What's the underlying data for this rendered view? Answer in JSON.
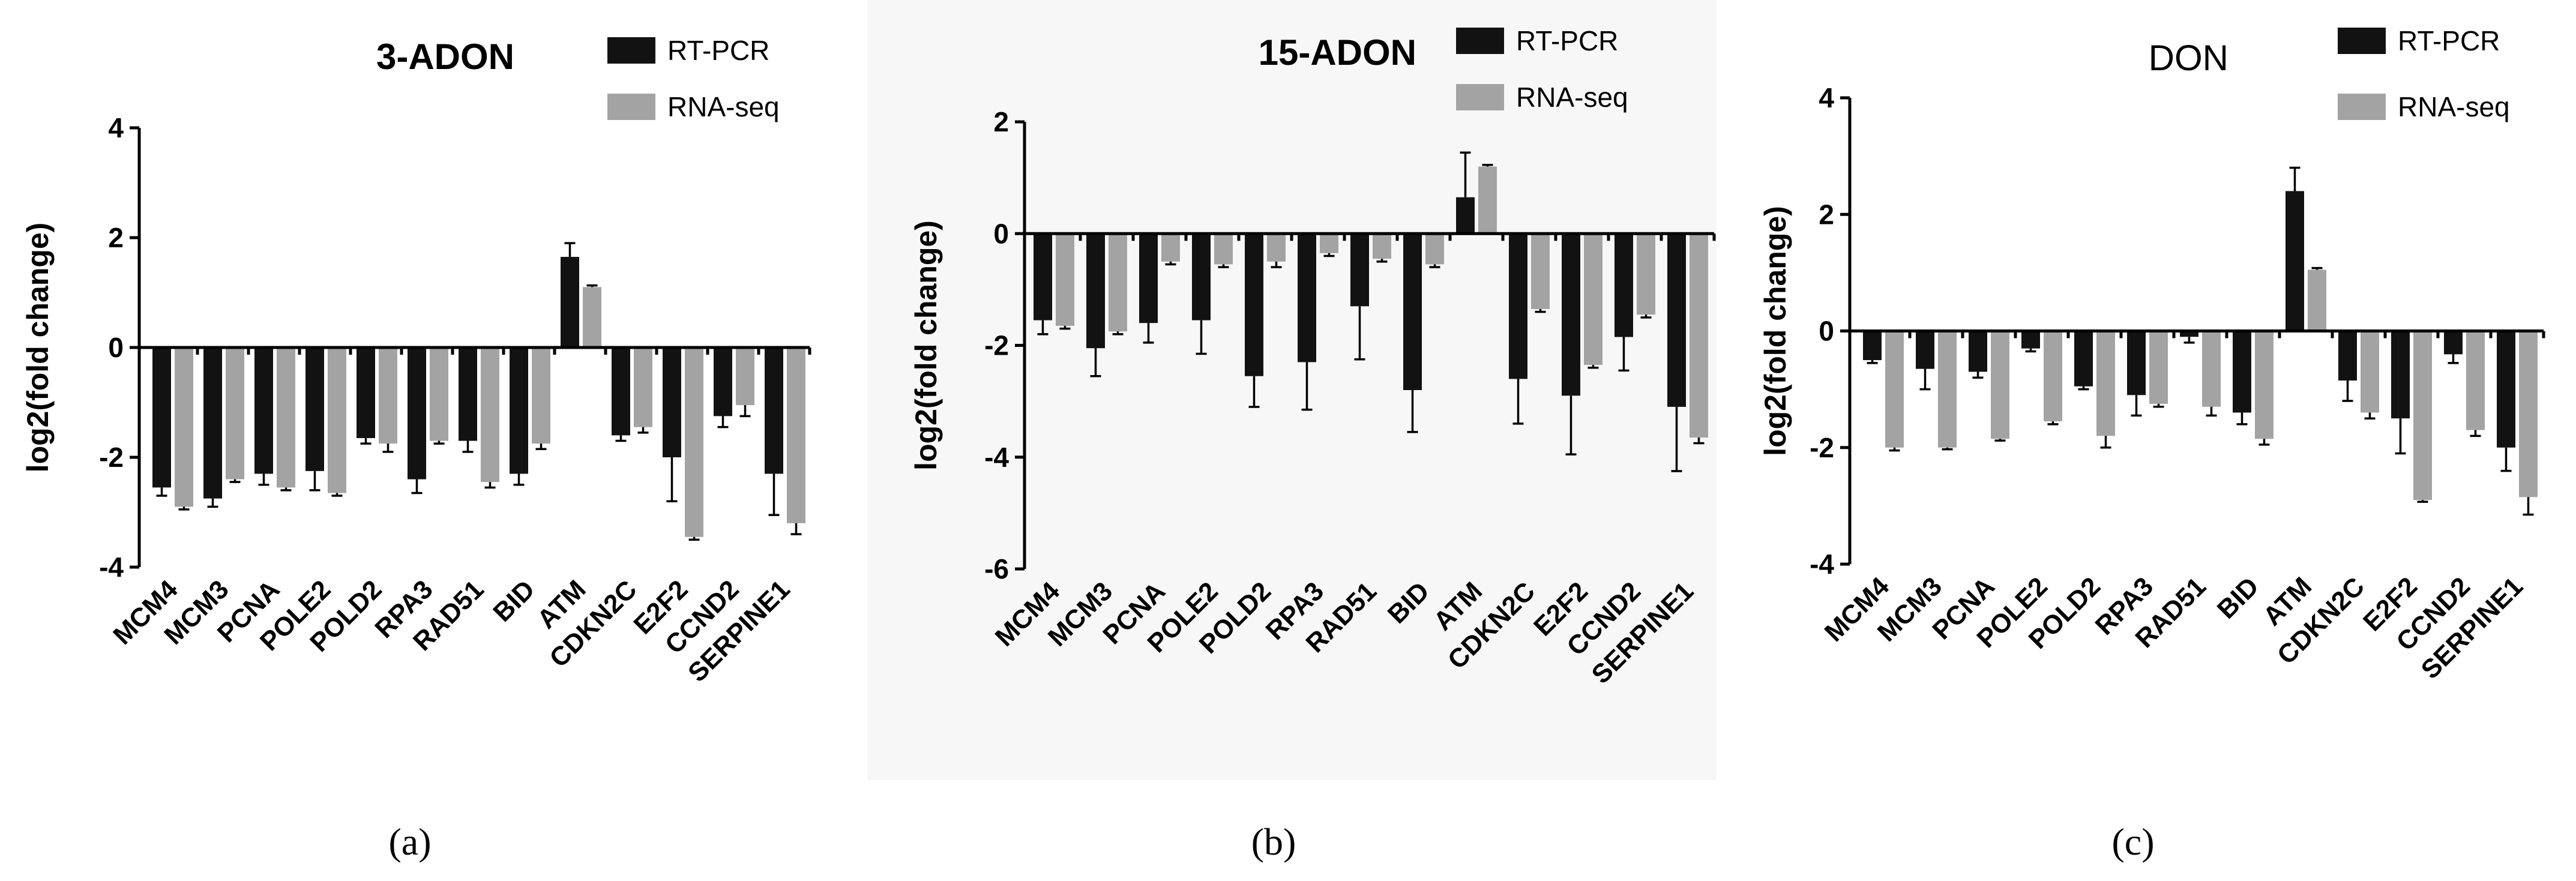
{
  "series_colors": {
    "RT-PCR": "#121212",
    "RNA-seq": "#a3a3a3"
  },
  "chart_data": [
    {
      "type": "bar",
      "panel": "(a)",
      "title": "3-ADON",
      "title_style": "bold",
      "ylabel": "log2(fold change)",
      "xlabel": "",
      "ylim": [
        -4,
        4
      ],
      "yticks": [
        -4,
        -2,
        0,
        2,
        4
      ],
      "legend": [
        "RT-PCR",
        "RNA-seq"
      ],
      "legend_position": "top-right",
      "categories": [
        "MCM4",
        "MCM3",
        "PCNA",
        "POLE2",
        "POLD2",
        "RPA3",
        "RAD51",
        "BID",
        "ATM",
        "CDKN2C",
        "E2F2",
        "CCND2",
        "SERPINE1"
      ],
      "series": [
        {
          "name": "RT-PCR",
          "values": [
            -2.55,
            -2.75,
            -2.3,
            -2.25,
            -1.65,
            -2.4,
            -1.7,
            -2.3,
            1.65,
            -1.6,
            -2.0,
            -1.25,
            -2.3
          ],
          "errors": [
            0.15,
            0.15,
            0.2,
            0.35,
            0.1,
            0.25,
            0.2,
            0.2,
            0.25,
            0.1,
            0.8,
            0.2,
            0.75
          ]
        },
        {
          "name": "RNA-seq",
          "values": [
            -2.9,
            -2.4,
            -2.55,
            -2.65,
            -1.75,
            -1.7,
            -2.45,
            -1.75,
            1.1,
            -1.45,
            -3.45,
            -1.05,
            -3.2
          ],
          "errors": [
            0.05,
            0.05,
            0.05,
            0.05,
            0.15,
            0.05,
            0.1,
            0.1,
            0.03,
            0.1,
            0.05,
            0.2,
            0.2
          ]
        }
      ]
    },
    {
      "type": "bar",
      "panel": "(b)",
      "title": "15-ADON",
      "title_style": "bold",
      "ylabel": "log2(fold change)",
      "xlabel": "",
      "ylim": [
        -6,
        2
      ],
      "yticks": [
        -6,
        -4,
        -2,
        0,
        2
      ],
      "legend": [
        "RT-PCR",
        "RNA-seq"
      ],
      "legend_position": "top-right",
      "categories": [
        "MCM4",
        "MCM3",
        "PCNA",
        "POLE2",
        "POLD2",
        "RPA3",
        "RAD51",
        "BID",
        "ATM",
        "CDKN2C",
        "E2F2",
        "CCND2",
        "SERPINE1"
      ],
      "series": [
        {
          "name": "RT-PCR",
          "values": [
            -1.55,
            -2.05,
            -1.6,
            -1.55,
            -2.55,
            -2.3,
            -1.3,
            -2.8,
            0.65,
            -2.6,
            -2.9,
            -1.85,
            -3.1
          ],
          "errors": [
            0.25,
            0.5,
            0.35,
            0.6,
            0.55,
            0.85,
            0.95,
            0.75,
            0.8,
            0.8,
            1.05,
            0.6,
            1.15
          ]
        },
        {
          "name": "RNA-seq",
          "values": [
            -1.65,
            -1.75,
            -0.5,
            -0.55,
            -0.5,
            -0.35,
            -0.45,
            -0.55,
            1.2,
            -1.35,
            -2.35,
            -1.45,
            -3.65
          ],
          "errors": [
            0.05,
            0.05,
            0.05,
            0.05,
            0.1,
            0.05,
            0.05,
            0.05,
            0.03,
            0.05,
            0.05,
            0.05,
            0.1
          ]
        }
      ]
    },
    {
      "type": "bar",
      "panel": "(c)",
      "title": "DON",
      "title_style": "normal",
      "ylabel": "log2(fold change)",
      "xlabel": "",
      "ylim": [
        -4,
        4
      ],
      "yticks": [
        -4,
        -2,
        0,
        2,
        4
      ],
      "legend": [
        "RT-PCR",
        "RNA-seq"
      ],
      "legend_position": "top-right",
      "categories": [
        "MCM4",
        "MCM3",
        "PCNA",
        "POLE2",
        "POLD2",
        "RPA3",
        "RAD51",
        "BID",
        "ATM",
        "CDKN2C",
        "E2F2",
        "CCND2",
        "SERPINE1"
      ],
      "series": [
        {
          "name": "RT-PCR",
          "values": [
            -0.5,
            -0.65,
            -0.7,
            -0.3,
            -0.95,
            -1.1,
            -0.1,
            -1.4,
            2.4,
            -0.85,
            -1.5,
            -0.4,
            -2.0
          ],
          "errors": [
            0.05,
            0.35,
            0.1,
            0.05,
            0.05,
            0.35,
            0.1,
            0.2,
            0.4,
            0.35,
            0.6,
            0.15,
            0.4
          ]
        },
        {
          "name": "RNA-seq",
          "values": [
            -2.0,
            -2.0,
            -1.85,
            -1.55,
            -1.8,
            -1.25,
            -1.3,
            -1.85,
            1.05,
            -1.4,
            -2.9,
            -1.7,
            -2.85
          ],
          "errors": [
            0.05,
            0.03,
            0.03,
            0.05,
            0.2,
            0.05,
            0.15,
            0.1,
            0.03,
            0.1,
            0.03,
            0.1,
            0.3
          ]
        }
      ]
    }
  ]
}
